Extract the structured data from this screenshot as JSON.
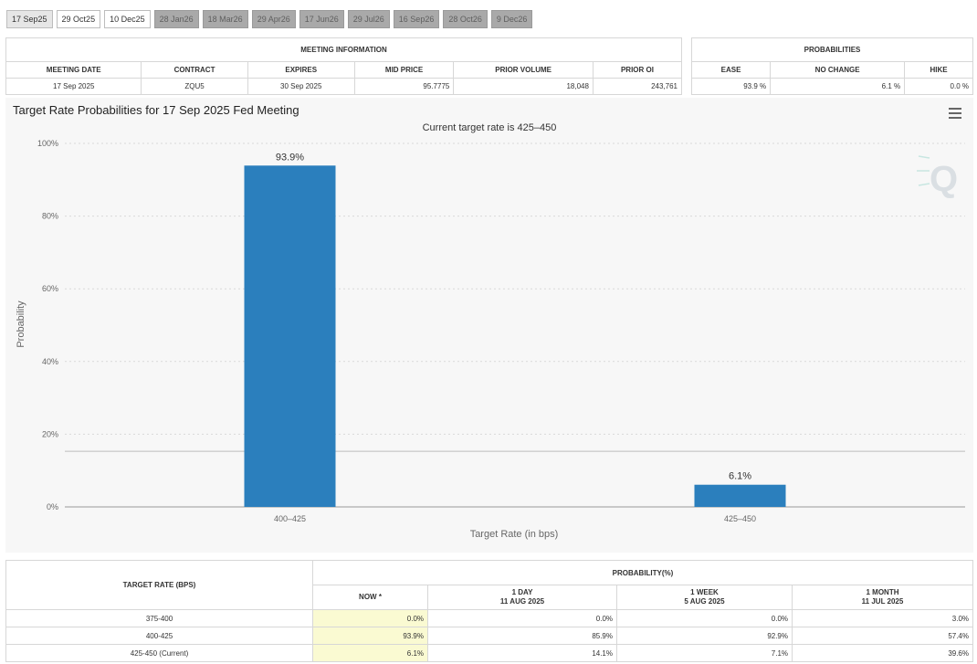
{
  "tabs": [
    {
      "label": "17 Sep25",
      "state": "active"
    },
    {
      "label": "29 Oct25",
      "state": "enabled"
    },
    {
      "label": "10 Dec25",
      "state": "enabled"
    },
    {
      "label": "28 Jan26",
      "state": "disabled"
    },
    {
      "label": "18 Mar26",
      "state": "disabled"
    },
    {
      "label": "29 Apr26",
      "state": "disabled"
    },
    {
      "label": "17 Jun26",
      "state": "disabled"
    },
    {
      "label": "29 Jul26",
      "state": "disabled"
    },
    {
      "label": "16 Sep26",
      "state": "disabled"
    },
    {
      "label": "28 Oct26",
      "state": "disabled"
    },
    {
      "label": "9 Dec26",
      "state": "disabled"
    }
  ],
  "meeting_info": {
    "title": "MEETING INFORMATION",
    "headers": [
      "MEETING DATE",
      "CONTRACT",
      "EXPIRES",
      "MID PRICE",
      "PRIOR VOLUME",
      "PRIOR OI"
    ],
    "row": [
      "17 Sep 2025",
      "ZQU5",
      "30 Sep 2025",
      "95.7775",
      "18,048",
      "243,761"
    ]
  },
  "probabilities": {
    "title": "PROBABILITIES",
    "headers": [
      "EASE",
      "NO CHANGE",
      "HIKE"
    ],
    "row": [
      "93.9 %",
      "6.1 %",
      "0.0 %"
    ]
  },
  "chart": {
    "title": "Target Rate Probabilities for 17 Sep 2025 Fed Meeting",
    "subtitle": "Current target rate is 425–450"
  },
  "chart_data": {
    "type": "bar",
    "categories": [
      "400–425",
      "425–450"
    ],
    "values": [
      93.9,
      6.1
    ],
    "data_labels": [
      "93.9%",
      "6.1%"
    ],
    "xlabel": "Target Rate (in bps)",
    "ylabel": "Probability",
    "ylim": [
      0,
      100
    ],
    "yticks": [
      "0%",
      "20%",
      "40%",
      "60%",
      "80%",
      "100%"
    ],
    "grid": true,
    "bar_color": "#2b7fbd",
    "reference_line_value": 15.3
  },
  "rate_table": {
    "target_rate_header": "TARGET RATE (BPS)",
    "probability_header": "PROBABILITY(%)",
    "now_header": "NOW *",
    "columns": [
      {
        "line1": "1 DAY",
        "line2": "11 AUG 2025"
      },
      {
        "line1": "1 WEEK",
        "line2": "5 AUG 2025"
      },
      {
        "line1": "1 MONTH",
        "line2": "11 JUL 2025"
      }
    ],
    "rows": [
      {
        "rate": "375-400",
        "now": "0.0%",
        "day": "0.0%",
        "week": "0.0%",
        "month": "3.0%"
      },
      {
        "rate": "400-425",
        "now": "93.9%",
        "day": "85.9%",
        "week": "92.9%",
        "month": "57.4%"
      },
      {
        "rate": "425-450 (Current)",
        "now": "6.1%",
        "day": "14.1%",
        "week": "7.1%",
        "month": "39.6%"
      }
    ]
  }
}
